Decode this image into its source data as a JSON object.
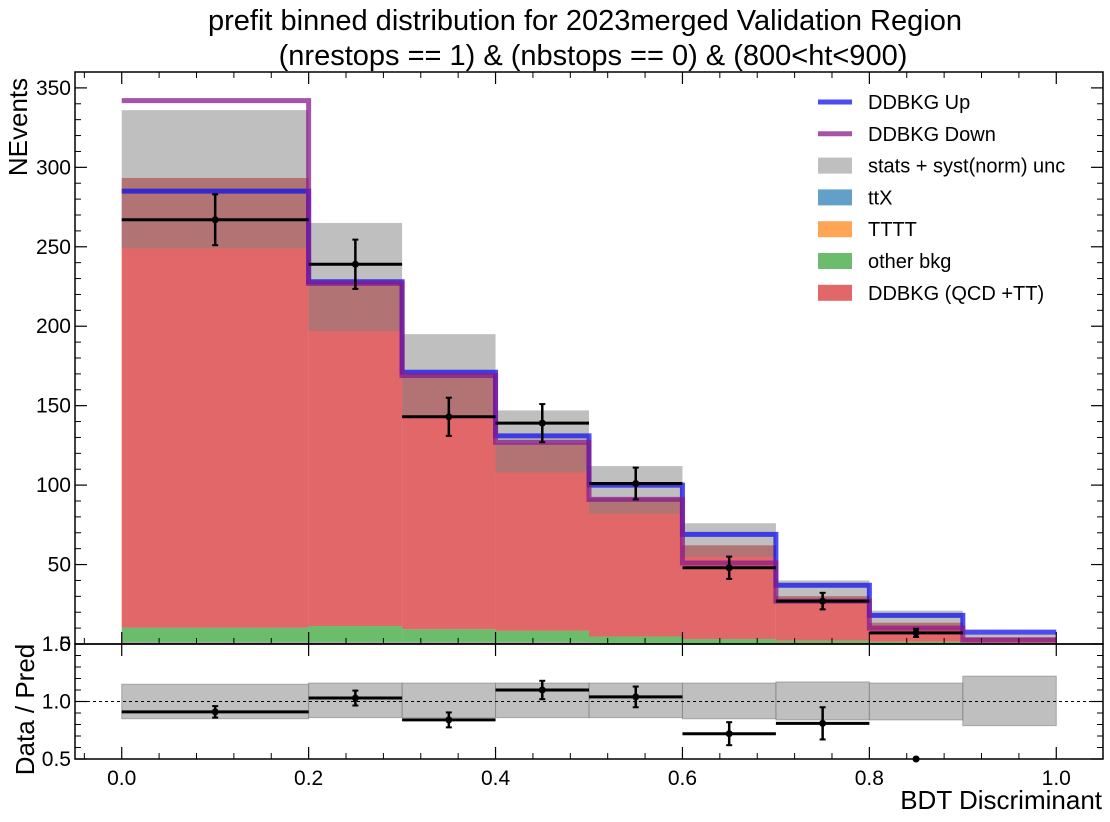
{
  "chart_data": [
    {
      "type": "bar",
      "title_line1": "prefit binned distribution for 2023merged Validation Region",
      "title_line2": "(nrestops == 1) & (nbstops == 0) & (800<ht<900)",
      "ylabel": "NEvents",
      "xlim": [
        -0.05,
        1.05
      ],
      "ylim": [
        0,
        360
      ],
      "yticks": [
        0,
        50,
        100,
        150,
        200,
        250,
        300,
        350
      ],
      "bin_edges": [
        0.0,
        0.2,
        0.3,
        0.4,
        0.5,
        0.6,
        0.7,
        0.8,
        0.9,
        1.0
      ],
      "stack": [
        {
          "name": "ttX",
          "color": "#1f77b4",
          "values": [
            1,
            1,
            1,
            1,
            0.5,
            0.5,
            0.5,
            0.3,
            0.2
          ]
        },
        {
          "name": "TTTT",
          "color": "#ff7f0e",
          "values": [
            0.3,
            0.3,
            0.3,
            0.3,
            0.2,
            0.1,
            0.1,
            0.1,
            0.05
          ]
        },
        {
          "name": "other bkg",
          "color": "#2ca02c",
          "values": [
            9,
            10,
            8,
            7,
            4,
            2.5,
            1.5,
            1,
            0.5
          ]
        },
        {
          "name": "DDBKG (QCD +TT)",
          "color": "#d62728",
          "values": [
            283,
            216,
            160,
            118,
            87,
            59,
            28,
            12,
            3.5
          ]
        }
      ],
      "uncertainty": {
        "name": "stats + syst(norm) unc",
        "color": "#808080",
        "low": [
          249,
          197,
          144,
          108,
          82,
          55,
          26,
          11,
          3
        ],
        "high": [
          336,
          265,
          195,
          147,
          112,
          76,
          40,
          21,
          6
        ]
      },
      "variations": [
        {
          "name": "DDBKG Up",
          "color": "#1010ee",
          "values": [
            285,
            228,
            171,
            131,
            100,
            69,
            37,
            18,
            7.5
          ]
        },
        {
          "name": "DDBKG Down",
          "color": "#8a1a8a",
          "values": [
            342,
            227,
            169,
            127,
            91,
            51,
            27,
            10,
            2.5
          ]
        }
      ],
      "data_points": {
        "x": [
          0.1,
          0.25,
          0.35,
          0.45,
          0.55,
          0.65,
          0.75,
          0.85
        ],
        "y": [
          267,
          239,
          143,
          139,
          101,
          48,
          27,
          7
        ],
        "yerr": [
          16,
          15.5,
          12,
          12,
          10,
          7,
          5.2,
          2.6
        ]
      },
      "legend": {
        "placement": "top-right",
        "entries": [
          "DDBKG Up",
          "DDBKG Down",
          "stats + syst(norm) unc",
          "ttX",
          "TTTT",
          "other bkg",
          "DDBKG (QCD +TT)"
        ]
      },
      "bottom_tick_label_top": "1.5"
    },
    {
      "type": "scatter",
      "ylabel": "Data / Pred",
      "xlabel": "BDT Discriminant",
      "xlim": [
        -0.05,
        1.05
      ],
      "ylim": [
        0.5,
        1.5
      ],
      "yticks": [
        0.5,
        1.0
      ],
      "ytick_labels": [
        "0.5",
        "1.0"
      ],
      "xticks": [
        0.0,
        0.2,
        0.4,
        0.6,
        0.8,
        1.0
      ],
      "xtick_labels": [
        "0.0",
        "0.2",
        "0.4",
        "0.6",
        "0.8",
        "1.0"
      ],
      "reference_line": 1.0,
      "bin_edges": [
        0.0,
        0.2,
        0.3,
        0.4,
        0.5,
        0.6,
        0.7,
        0.8,
        0.9,
        1.0
      ],
      "band_low": [
        0.85,
        0.86,
        0.86,
        0.86,
        0.86,
        0.85,
        0.84,
        0.84,
        0.79
      ],
      "band_high": [
        1.15,
        1.16,
        1.16,
        1.16,
        1.16,
        1.16,
        1.17,
        1.16,
        1.22
      ],
      "ratio": {
        "x": [
          0.1,
          0.25,
          0.35,
          0.45,
          0.55,
          0.65,
          0.75,
          0.85
        ],
        "xerr_lo": [
          0.1,
          0.05,
          0.05,
          0.05,
          0.05,
          0.05,
          0.05,
          0.05
        ],
        "xerr_hi": [
          0.1,
          0.05,
          0.05,
          0.05,
          0.05,
          0.05,
          0.05,
          0.05
        ],
        "y": [
          0.91,
          1.03,
          0.84,
          1.1,
          1.04,
          0.72,
          0.81,
          0.5
        ],
        "yerr": [
          0.05,
          0.065,
          0.065,
          0.08,
          0.09,
          0.1,
          0.14,
          0.01
        ]
      }
    }
  ]
}
